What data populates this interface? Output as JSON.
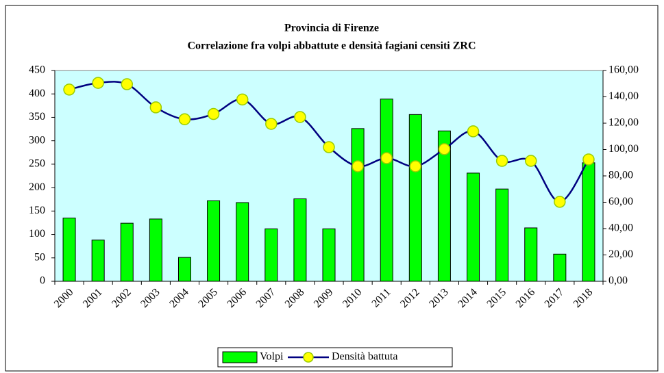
{
  "chart_data": {
    "type": "bar_line",
    "title": "Provincia di Firenze",
    "subtitle": "Correlazione fra volpi abbattute e densità fagiani censiti ZRC",
    "categories": [
      "2000",
      "2001",
      "2002",
      "2003",
      "2004",
      "2005",
      "2006",
      "2007",
      "2008",
      "2009",
      "2010",
      "2011",
      "2012",
      "2013",
      "2014",
      "2015",
      "2016",
      "2017",
      "2018"
    ],
    "series": [
      {
        "name": "Volpi",
        "type": "bar",
        "color": "#00ff00",
        "values": [
          135,
          88,
          124,
          133,
          51,
          172,
          168,
          112,
          176,
          112,
          326,
          389,
          356,
          321,
          231,
          197,
          114,
          58,
          253
        ]
      },
      {
        "name": "Densità battuta",
        "type": "line",
        "axis": "y2",
        "color": "#000080",
        "marker_color": "#ffff00",
        "values": [
          145.5,
          150.6,
          149.6,
          132,
          123,
          127,
          138,
          119.5,
          124.7,
          101.8,
          87.3,
          93.5,
          87.3,
          100.3,
          113.8,
          91.4,
          91.4,
          60.3,
          92.5
        ]
      }
    ],
    "ylim": [
      0,
      450
    ],
    "yticks": [
      0,
      50,
      100,
      150,
      200,
      250,
      300,
      350,
      400,
      450
    ],
    "y2lim": [
      0,
      160
    ],
    "y2ticks": [
      {
        "value": 0,
        "label": "0,00"
      },
      {
        "value": 20,
        "label": "20,00"
      },
      {
        "value": 40,
        "label": "40,00"
      },
      {
        "value": 60,
        "label": "60,00"
      },
      {
        "value": 80,
        "label": "80,00"
      },
      {
        "value": 100,
        "label": "100,00"
      },
      {
        "value": 120,
        "label": "120,00"
      },
      {
        "value": 140,
        "label": "140,00"
      },
      {
        "value": 160,
        "label": "160,00"
      }
    ],
    "plot_background": "#ccffff",
    "legend": "bottom"
  }
}
